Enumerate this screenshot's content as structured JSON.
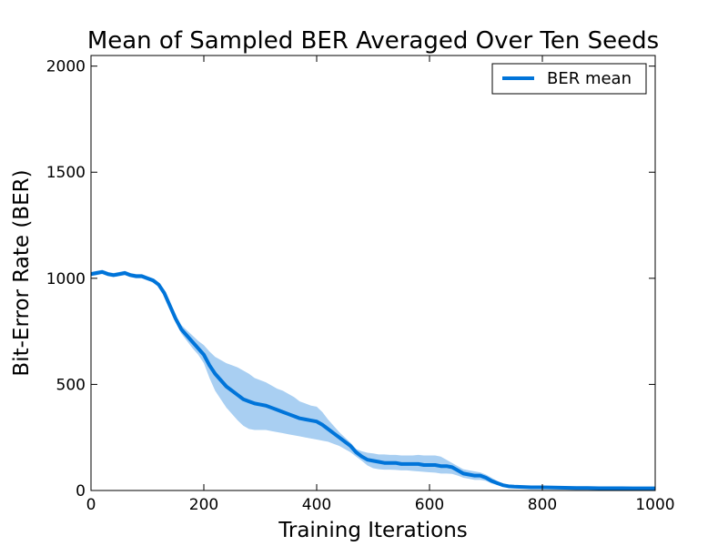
{
  "chart_data": {
    "type": "line",
    "title": "Mean of Sampled BER Averaged Over Ten Seeds",
    "xlabel": "Training Iterations",
    "ylabel": "Bit-Error Rate (BER)",
    "xlim": [
      0,
      1000
    ],
    "ylim": [
      0,
      2050
    ],
    "xticks": [
      0,
      200,
      400,
      600,
      800,
      1000
    ],
    "yticks": [
      0,
      500,
      1000,
      1500,
      2000
    ],
    "grid": false,
    "legend_position": "top-right",
    "colors": {
      "mean_line": "#0074d9",
      "band_fill": "#a9cff2"
    },
    "series": [
      {
        "name": "BER mean",
        "x": [
          0,
          10,
          20,
          30,
          40,
          50,
          60,
          70,
          80,
          90,
          100,
          110,
          120,
          130,
          140,
          150,
          160,
          170,
          180,
          190,
          200,
          210,
          220,
          230,
          240,
          250,
          260,
          270,
          280,
          290,
          300,
          310,
          320,
          330,
          340,
          350,
          360,
          370,
          380,
          390,
          400,
          410,
          420,
          430,
          440,
          450,
          460,
          470,
          480,
          490,
          500,
          510,
          520,
          530,
          540,
          550,
          560,
          570,
          580,
          590,
          600,
          610,
          620,
          630,
          640,
          650,
          660,
          670,
          680,
          690,
          700,
          710,
          720,
          730,
          740,
          750,
          760,
          770,
          780,
          790,
          800,
          820,
          840,
          860,
          880,
          900,
          920,
          940,
          960,
          980,
          1000
        ],
        "values": [
          1020,
          1025,
          1030,
          1020,
          1015,
          1020,
          1025,
          1015,
          1010,
          1010,
          1000,
          990,
          970,
          930,
          870,
          810,
          760,
          730,
          700,
          670,
          640,
          590,
          550,
          520,
          490,
          470,
          450,
          430,
          420,
          410,
          405,
          400,
          390,
          380,
          370,
          360,
          350,
          340,
          335,
          330,
          325,
          310,
          290,
          270,
          250,
          230,
          210,
          180,
          160,
          145,
          140,
          135,
          130,
          130,
          130,
          125,
          125,
          125,
          125,
          120,
          120,
          120,
          115,
          115,
          110,
          95,
          80,
          75,
          70,
          70,
          60,
          45,
          35,
          25,
          20,
          18,
          17,
          16,
          15,
          15,
          15,
          14,
          13,
          12,
          12,
          11,
          11,
          11,
          10,
          10,
          10
        ],
        "upper": [
          1030,
          1035,
          1040,
          1030,
          1025,
          1030,
          1035,
          1025,
          1020,
          1020,
          1010,
          1000,
          980,
          940,
          885,
          825,
          780,
          755,
          730,
          705,
          685,
          655,
          630,
          615,
          600,
          590,
          580,
          565,
          550,
          530,
          520,
          510,
          495,
          480,
          470,
          455,
          440,
          420,
          410,
          400,
          395,
          370,
          335,
          305,
          275,
          250,
          225,
          195,
          185,
          178,
          175,
          170,
          170,
          168,
          168,
          165,
          165,
          165,
          168,
          165,
          165,
          165,
          160,
          145,
          130,
          115,
          100,
          95,
          90,
          85,
          75,
          60,
          45,
          30,
          24,
          21,
          20,
          19,
          18,
          18,
          17,
          16,
          15,
          14,
          14,
          13,
          13,
          12,
          12,
          12,
          11
        ],
        "lower": [
          1010,
          1015,
          1020,
          1010,
          1005,
          1010,
          1015,
          1005,
          1000,
          1000,
          990,
          980,
          960,
          920,
          855,
          795,
          740,
          705,
          670,
          640,
          600,
          530,
          470,
          430,
          390,
          360,
          330,
          305,
          290,
          285,
          285,
          285,
          280,
          275,
          270,
          265,
          260,
          255,
          250,
          245,
          240,
          235,
          230,
          220,
          210,
          195,
          180,
          160,
          140,
          118,
          105,
          100,
          98,
          98,
          97,
          95,
          95,
          92,
          90,
          88,
          86,
          84,
          80,
          80,
          78,
          70,
          60,
          55,
          50,
          50,
          45,
          33,
          25,
          18,
          15,
          14,
          13,
          12,
          12,
          11,
          11,
          10,
          9,
          9,
          8,
          8,
          8,
          8,
          7,
          7,
          7
        ]
      }
    ]
  }
}
